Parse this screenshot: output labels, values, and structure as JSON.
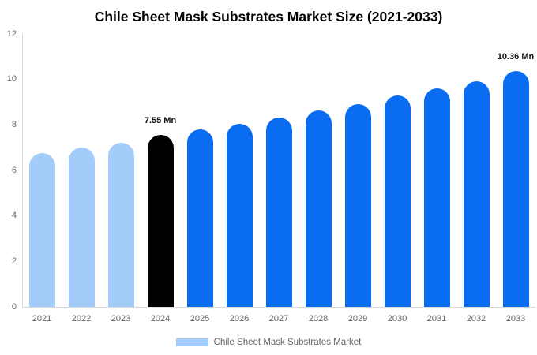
{
  "chart_data": {
    "type": "bar",
    "title": "Chile Sheet Mask Substrates Market Size (2021-2033)",
    "categories": [
      "2021",
      "2022",
      "2023",
      "2024",
      "2025",
      "2026",
      "2027",
      "2028",
      "2029",
      "2030",
      "2031",
      "2032",
      "2033"
    ],
    "values": [
      6.75,
      7.0,
      7.22,
      7.55,
      7.79,
      8.03,
      8.33,
      8.62,
      8.92,
      9.28,
      9.6,
      9.93,
      10.36
    ],
    "bar_colors": [
      "#a3ccfa",
      "#a3ccfa",
      "#a3ccfa",
      "#000000",
      "#0a6cf0",
      "#0a6cf0",
      "#0a6cf0",
      "#0a6cf0",
      "#0a6cf0",
      "#0a6cf0",
      "#0a6cf0",
      "#0a6cf0",
      "#0a6cf0"
    ],
    "annotations": [
      {
        "category": "2024",
        "text": "7.55 Mn"
      },
      {
        "category": "2033",
        "text": "10.36 Mn"
      }
    ],
    "ylim": [
      0,
      12
    ],
    "yticks": [
      0,
      2,
      4,
      6,
      8,
      10,
      12
    ],
    "xlabel": "",
    "ylabel": "",
    "grid": false,
    "legend_label": "Chile Sheet Mask Substrates Market",
    "legend_position": "bottom",
    "legend_swatch_color": "#a3ccfa",
    "axis_line_color": "#d9d9d9",
    "axis_text_color": "#666666",
    "annotation_text_color": "#111111",
    "title_color": "#000000",
    "background_color": "#ffffff"
  }
}
